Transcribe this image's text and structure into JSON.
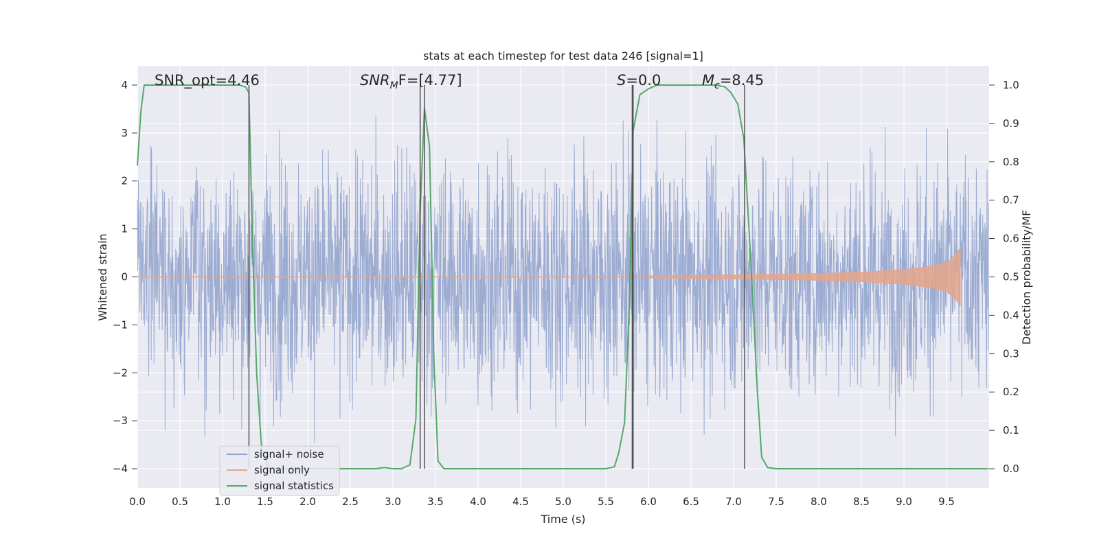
{
  "chart_data": {
    "type": "line",
    "title": "stats at each timestep for test data 246 [signal=1]",
    "xlabel": "Time (s)",
    "ylabel_left": "Whitened strain",
    "ylabel_right": "Detection probability/MF",
    "xlim": [
      0,
      10
    ],
    "ylim_left": [
      -4.4,
      4.4
    ],
    "ylim_right": [
      -0.05,
      1.05
    ],
    "xticks": [
      "0.0",
      "0.5",
      "1.0",
      "1.5",
      "2.0",
      "2.5",
      "3.0",
      "3.5",
      "4.0",
      "4.5",
      "5.0",
      "5.5",
      "6.0",
      "6.5",
      "7.0",
      "7.5",
      "8.0",
      "8.5",
      "9.0",
      "9.5"
    ],
    "yticks_left": [
      "4",
      "3",
      "2",
      "1",
      "0",
      "−1",
      "−2",
      "−3",
      "−4"
    ],
    "yticks_right": [
      "1.0",
      "0.9",
      "0.8",
      "0.7",
      "0.6",
      "0.5",
      "0.4",
      "0.3",
      "0.2",
      "0.1",
      "0.0"
    ],
    "grid": true,
    "background": "#eaeaf2",
    "annotations": {
      "snr_opt": "SNR_opt=4.46",
      "snr_mf_base": "SNR",
      "snr_mf_sub": "M",
      "snr_mf_rest": "F=[4.77]",
      "s_var": "S",
      "s_rest": "=0.0",
      "mc_var": "M",
      "mc_sub": "c",
      "mc_rest": "=8.45"
    },
    "series": [
      {
        "name": "signal+ noise",
        "color": "#8da0cb",
        "description_values": {
          "typical_amplitude": 1.5,
          "max_amplitude": 3.6
        }
      },
      {
        "name": "signal only",
        "color": "#e5a58a",
        "envelope": {
          "x": [
            6.0,
            7.0,
            8.0,
            8.5,
            9.0,
            9.3,
            9.5,
            9.6,
            9.66
          ],
          "amp": [
            0.02,
            0.04,
            0.07,
            0.1,
            0.15,
            0.22,
            0.3,
            0.45,
            0.6
          ]
        }
      },
      {
        "name": "signal statistics",
        "color": "#55a868",
        "x": [
          0.0,
          0.04,
          0.08,
          0.15,
          0.3,
          0.6,
          1.0,
          1.2,
          1.27,
          1.31,
          1.35,
          1.4,
          1.46,
          1.55,
          2.0,
          2.6,
          2.8,
          2.9,
          3.0,
          3.1,
          3.2,
          3.27,
          3.32,
          3.37,
          3.43,
          3.48,
          3.53,
          3.6,
          4.0,
          5.0,
          5.5,
          5.6,
          5.65,
          5.72,
          5.78,
          5.82,
          5.9,
          6.0,
          6.1,
          6.5,
          6.8,
          6.9,
          6.97,
          7.05,
          7.12,
          7.2,
          7.28,
          7.33,
          7.4,
          7.5,
          8.0,
          9.0,
          9.99
        ],
        "y": [
          0.79,
          0.93,
          1.0,
          1.0,
          1.0,
          1.0,
          1.0,
          1.0,
          0.995,
          0.98,
          0.6,
          0.25,
          0.05,
          0.0,
          0.0,
          0.0,
          0.0,
          0.003,
          0.0,
          0.0,
          0.01,
          0.13,
          0.67,
          0.94,
          0.84,
          0.3,
          0.02,
          0.0,
          0.0,
          0.0,
          0.0,
          0.005,
          0.04,
          0.12,
          0.45,
          0.88,
          0.975,
          0.99,
          1.0,
          1.0,
          1.0,
          0.995,
          0.98,
          0.95,
          0.86,
          0.55,
          0.2,
          0.03,
          0.003,
          0.0,
          0.0,
          0.0,
          0.0
        ]
      }
    ],
    "vlines": [
      1.31,
      3.32,
      3.37,
      5.81,
      5.82,
      7.13
    ],
    "vline_color": "#505050",
    "legend": {
      "placement": "lower-left",
      "entries": [
        "signal+ noise",
        "signal only",
        "signal statistics"
      ]
    }
  }
}
